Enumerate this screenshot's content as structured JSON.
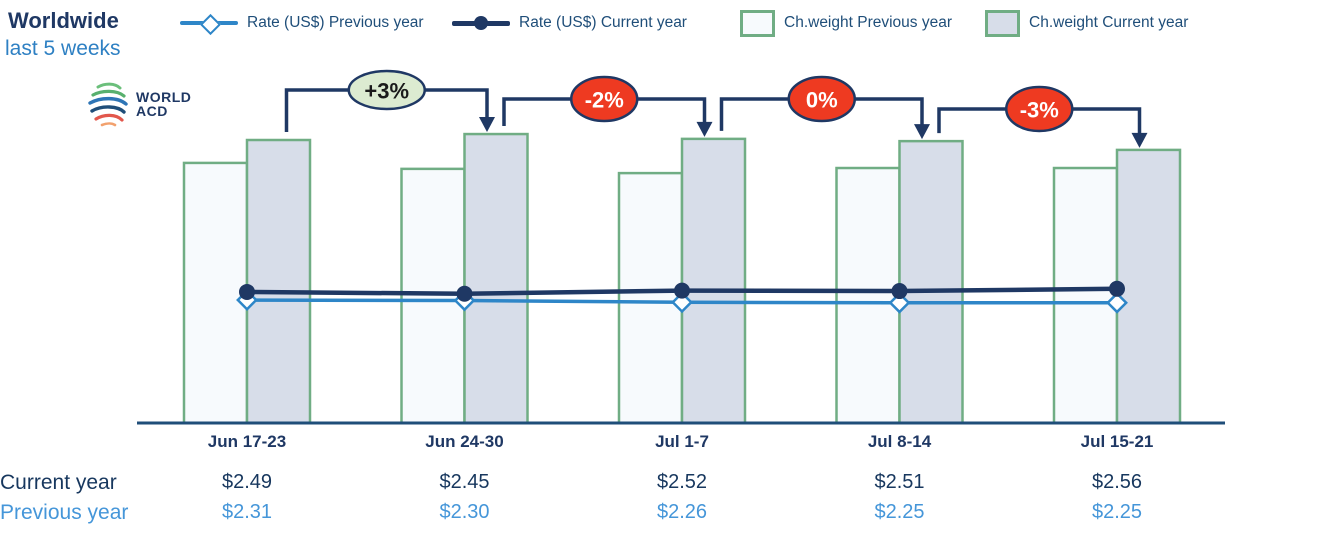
{
  "header": {
    "title": "Worldwide",
    "subtitle": "last 5 weeks"
  },
  "logo": {
    "line1": "WORLD",
    "line2": "ACD"
  },
  "legend": [
    {
      "label": "Rate (US$) Previous year",
      "marker": "line-with-diamond",
      "color": "#2E86C8"
    },
    {
      "label": "Rate (US$) Current year",
      "marker": "line-with-circle",
      "color": "#1F3864"
    },
    {
      "label": "Ch.weight Previous year",
      "marker": "bar-swatch",
      "fill": "#F7FAFD",
      "border": "#70AD84"
    },
    {
      "label": "Ch.weight Current year",
      "marker": "bar-swatch",
      "fill": "#D7DDE9",
      "border": "#70AD84"
    }
  ],
  "chart_data": {
    "type": "combo-bar-line",
    "categories": [
      "Jun 17-23",
      "Jun 24-30",
      "Jul 1-7",
      "Jul 8-14",
      "Jul 15-21"
    ],
    "series": [
      {
        "name": "Rate (US$) Previous year",
        "type": "line",
        "marker": "diamond",
        "color": "#2E86C8",
        "values": [
          2.31,
          2.3,
          2.26,
          2.25,
          2.25
        ],
        "unit": "US$"
      },
      {
        "name": "Rate (US$) Current year",
        "type": "line",
        "marker": "circle",
        "color": "#1F3864",
        "values": [
          2.49,
          2.45,
          2.52,
          2.51,
          2.56
        ],
        "unit": "US$"
      },
      {
        "name": "Ch.weight Previous year",
        "type": "bar",
        "fill": "#F7FAFD",
        "border": "#70AD84",
        "weight_index": [
          91.9,
          89.8,
          88.3,
          90.1,
          90.1
        ]
      },
      {
        "name": "Ch.weight Current year",
        "type": "bar",
        "fill": "#D7DDE9",
        "border": "#70AD84",
        "weight_index": [
          100,
          102.1,
          100.4,
          99.6,
          96.5
        ]
      }
    ],
    "change_badges": [
      {
        "label": "+3%",
        "tone": "positive"
      },
      {
        "label": "-2%",
        "tone": "negative"
      },
      {
        "label": "0%",
        "tone": "negative"
      },
      {
        "label": "-3%",
        "tone": "negative"
      }
    ],
    "badge_colors": {
      "positive_fill": "#DCEBD1",
      "positive_text": "#1A1A1A",
      "negative_fill": "#EE3A21",
      "negative_text": "#FFFFFF",
      "border": "#1F3864"
    },
    "axis_color": "#1F4E79",
    "label_color": "#1F3864",
    "legend_position": "top",
    "grid": false
  },
  "table": {
    "rows": [
      {
        "label": "Current year",
        "color": "#17375E",
        "values": [
          "$2.49",
          "$2.45",
          "$2.52",
          "$2.51",
          "$2.56"
        ]
      },
      {
        "label": "Previous year",
        "color": "#4596D9",
        "values": [
          "$2.31",
          "$2.30",
          "$2.26",
          "$2.25",
          "$2.25"
        ]
      }
    ]
  }
}
